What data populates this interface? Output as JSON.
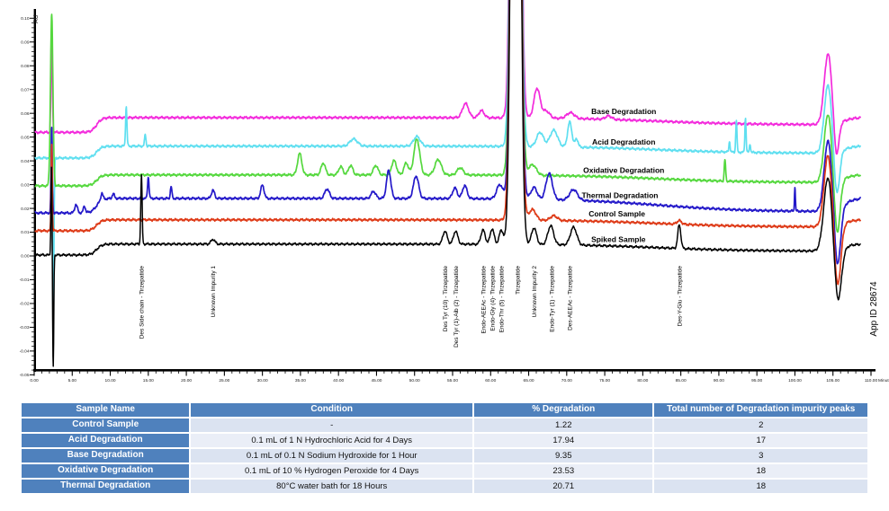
{
  "app_id": "App ID 28674",
  "chart_data": {
    "type": "line",
    "title": "",
    "xlabel": "Minutes",
    "ylabel": "AU",
    "xlim": [
      0,
      110
    ],
    "ylim": [
      -0.05,
      0.1
    ],
    "x_major_tick": 5,
    "x_minor_tick": 1,
    "y_major_tick": 0.01,
    "y_minor_tick": 0.002,
    "grid": false,
    "legend_position": "labels-above-traces",
    "series": [
      {
        "name": "Base Degradation",
        "color": "#f32bdc",
        "baseline_start_au": 0.052,
        "baseline_au": 0.0582,
        "sag_au": 0.003,
        "label_t": 77.5,
        "injection": {
          "t_up": 2.3,
          "h_up": 0.04,
          "s_up": 0.09,
          "t_down": 2.5,
          "h_down": 0,
          "s_down": 0.08
        },
        "peaks": [
          [
            56.7,
            0.006,
            0.4
          ],
          [
            58.8,
            0.003,
            0.35
          ],
          [
            63.3,
            0.5,
            0.45
          ],
          [
            66.1,
            0.0125,
            0.4
          ],
          [
            67.3,
            0.003,
            0.45
          ],
          [
            70.5,
            0.0025,
            0.5
          ],
          [
            75.5,
            0.0015,
            0.4
          ]
        ],
        "end_artifact": {
          "peak_t": 104.35,
          "peak_h": 0.0295,
          "peak_s": 0.5,
          "dip_t": 105.45,
          "dip_d": 0.015,
          "dip_s": 0.32
        }
      },
      {
        "name": "Acid Degradation",
        "color": "#5fdff0",
        "baseline_start_au": 0.0412,
        "baseline_au": 0.0462,
        "sag_au": 0.003,
        "label_t": 77.5,
        "injection": {
          "t_up": 2.28,
          "h_up": 0.007,
          "s_up": 0.09,
          "t_down": 2.5,
          "h_down": 0.07,
          "s_down": 0.09
        },
        "peaks": [
          [
            12.1,
            0.0165,
            0.09
          ],
          [
            14.6,
            0.005,
            0.09
          ],
          [
            42.0,
            0.003,
            0.5
          ],
          [
            50.3,
            0.004,
            0.45
          ],
          [
            63.3,
            0.5,
            0.45
          ],
          [
            66.5,
            0.006,
            0.45
          ],
          [
            68.3,
            0.007,
            0.5
          ],
          [
            70.4,
            0.0105,
            0.28
          ],
          [
            71.3,
            0.0035,
            0.2
          ],
          [
            91.4,
            0.0045,
            0.08
          ],
          [
            92.3,
            0.0135,
            0.08
          ],
          [
            93.5,
            0.0145,
            0.08
          ],
          [
            94.1,
            0.0035,
            0.08
          ]
        ],
        "end_artifact": {
          "peak_t": 104.35,
          "peak_h": 0.0285,
          "peak_s": 0.5,
          "dip_t": 105.5,
          "dip_d": 0.019,
          "dip_s": 0.36
        }
      },
      {
        "name": "Oxidative Degradation",
        "color": "#55d83e",
        "baseline_start_au": 0.0295,
        "baseline_au": 0.0341,
        "sag_au": 0.0032,
        "label_t": 77.5,
        "injection": {
          "t_up": 2.3,
          "h_up": 0.0725,
          "s_up": 0.16,
          "t_down": 2.5,
          "h_down": 0,
          "s_down": 0.08
        },
        "peaks": [
          [
            34.9,
            0.009,
            0.28
          ],
          [
            38.0,
            0.005,
            0.28
          ],
          [
            40.3,
            0.0035,
            0.28
          ],
          [
            41.6,
            0.004,
            0.28
          ],
          [
            44.9,
            0.004,
            0.3
          ],
          [
            47.3,
            0.006,
            0.32
          ],
          [
            48.9,
            0.005,
            0.3
          ],
          [
            50.3,
            0.0151,
            0.38
          ],
          [
            53.1,
            0.0065,
            0.42
          ],
          [
            56.0,
            0.003,
            0.4
          ],
          [
            63.3,
            0.5,
            0.45
          ],
          [
            65.5,
            0.0045,
            0.5
          ],
          [
            90.8,
            0.009,
            0.09
          ]
        ],
        "end_artifact": {
          "peak_t": 104.35,
          "peak_h": 0.0285,
          "peak_s": 0.5,
          "dip_t": 105.55,
          "dip_d": 0.023,
          "dip_s": 0.38
        }
      },
      {
        "name": "Thermal Degradation",
        "color": "#2318c9",
        "baseline_start_au": 0.0181,
        "baseline_au": 0.0242,
        "sag_au": 0.0056,
        "label_t": 77.0,
        "injection": {
          "t_up": 2.3,
          "h_up": 0.036,
          "s_up": 0.08,
          "t_down": 2.5,
          "h_down": 0,
          "s_down": 0.08
        },
        "peaks": [
          [
            5.5,
            0.0035,
            0.18
          ],
          [
            6.6,
            0.0028,
            0.14
          ],
          [
            8.9,
            0.003,
            0.14
          ],
          [
            10.4,
            0.002,
            0.14
          ],
          [
            15.0,
            0.009,
            0.1
          ],
          [
            18.0,
            0.005,
            0.1
          ],
          [
            23.5,
            0.0035,
            0.2
          ],
          [
            30.0,
            0.0056,
            0.22
          ],
          [
            38.5,
            0.004,
            0.3
          ],
          [
            44.6,
            0.003,
            0.3
          ],
          [
            46.6,
            0.0118,
            0.28
          ],
          [
            50.2,
            0.0095,
            0.34
          ],
          [
            55.3,
            0.0045,
            0.3
          ],
          [
            56.6,
            0.0055,
            0.3
          ],
          [
            61.2,
            0.006,
            0.4
          ],
          [
            63.3,
            0.5,
            0.45
          ],
          [
            65.7,
            0.005,
            0.4
          ],
          [
            67.7,
            0.011,
            0.42
          ],
          [
            70.9,
            0.0045,
            0.5
          ],
          [
            100.0,
            0.0105,
            0.06
          ]
        ],
        "end_artifact": {
          "peak_t": 104.35,
          "peak_h": 0.0295,
          "peak_s": 0.5,
          "dip_t": 105.6,
          "dip_d": 0.0245,
          "dip_s": 0.4
        }
      },
      {
        "name": "Control Sample",
        "color": "#de3a17",
        "baseline_start_au": 0.0106,
        "baseline_au": 0.0152,
        "sag_au": 0.003,
        "label_t": 76.6,
        "injection": {
          "t_up": 2.3,
          "h_up": 0.037,
          "s_up": 0.07,
          "t_down": 2.5,
          "h_down": 0,
          "s_down": 0.08
        },
        "peaks": [
          [
            63.3,
            0.5,
            0.45
          ],
          [
            65.5,
            0.0045,
            0.45
          ],
          [
            68.3,
            0.002,
            0.45
          ],
          [
            84.8,
            0.0015,
            0.3
          ]
        ],
        "end_artifact": {
          "peak_t": 104.35,
          "peak_h": 0.03,
          "peak_s": 0.52,
          "dip_t": 105.6,
          "dip_d": 0.0265,
          "dip_s": 0.42
        }
      },
      {
        "name": "Spiked Sample",
        "color": "#000000",
        "baseline_start_au": 0.0004,
        "baseline_au": 0.005,
        "sag_au": 0.003,
        "label_t": 76.8,
        "injection": {
          "t_up": 2.27,
          "h_up": 0.037,
          "s_up": 0.07,
          "t_down": 2.5,
          "h_down": 0.048,
          "s_down": 0.07
        },
        "peaks": [
          [
            14.1,
            0.029,
            0.09
          ],
          [
            23.5,
            0.002,
            0.25
          ],
          [
            54.0,
            0.0055,
            0.28
          ],
          [
            55.4,
            0.0055,
            0.28
          ],
          [
            59.0,
            0.006,
            0.28
          ],
          [
            60.2,
            0.0065,
            0.26
          ],
          [
            61.4,
            0.006,
            0.26
          ],
          [
            63.3,
            0.5,
            0.45
          ],
          [
            65.7,
            0.007,
            0.33
          ],
          [
            67.9,
            0.008,
            0.38
          ],
          [
            70.9,
            0.0075,
            0.42
          ],
          [
            84.8,
            0.01,
            0.2
          ]
        ],
        "end_artifact": {
          "peak_t": 104.35,
          "peak_h": 0.031,
          "peak_s": 0.55,
          "dip_t": 105.65,
          "dip_d": 0.0225,
          "dip_s": 0.45
        }
      }
    ],
    "peak_annotations": [
      {
        "t": 14.1,
        "text": "Des Side chain - Tirzepatide"
      },
      {
        "t": 23.5,
        "text": "Unknown Impurity 1"
      },
      {
        "t": 54.0,
        "text": "Des Tyr (10) - Tirzepatide"
      },
      {
        "t": 55.4,
        "text": "Des Tyr (1)-Aib (2) - Tirzepatide"
      },
      {
        "t": 59.0,
        "text": "Endo-AEEAc - Tirzepatide"
      },
      {
        "t": 60.2,
        "text": "Endo-Gly (4)- Tirzepatide"
      },
      {
        "t": 61.4,
        "text": "Endo-Thr (5) - Tirzepatide"
      },
      {
        "t": 63.5,
        "text": "Tirzepatide"
      },
      {
        "t": 65.7,
        "text": "Unknown Impurity 2"
      },
      {
        "t": 68.0,
        "text": "Endo-Tyr (1) - Tirzepatide"
      },
      {
        "t": 70.4,
        "text": "Des-AEEAc - Tirzepatide"
      },
      {
        "t": 84.8,
        "text": "Des-Y-Glu - Tirzepatide"
      }
    ]
  },
  "table": {
    "header_bg": "#4f81bd",
    "row_bg_dark": "#dbe3f1",
    "row_bg_light": "#eaeef7",
    "headers": [
      "Sample Name",
      "Condition",
      "% Degradation",
      "Total number of Degradation impurity peaks"
    ],
    "rows": [
      [
        "Control Sample",
        "-",
        "1.22",
        "2"
      ],
      [
        "Acid Degradation",
        "0.1 mL of 1 N Hydrochloric Acid for 4 Days",
        "17.94",
        "17"
      ],
      [
        "Base Degradation",
        "0.1 mL of 0.1 N Sodium Hydroxide for 1 Hour",
        "9.35",
        "3"
      ],
      [
        "Oxidative Degradation",
        "0.1 mL of 10 % Hydrogen Peroxide for 4 Days",
        "23.53",
        "18"
      ],
      [
        "Thermal Degradation",
        "80°C water bath for 18 Hours",
        "20.71",
        "18"
      ]
    ]
  }
}
